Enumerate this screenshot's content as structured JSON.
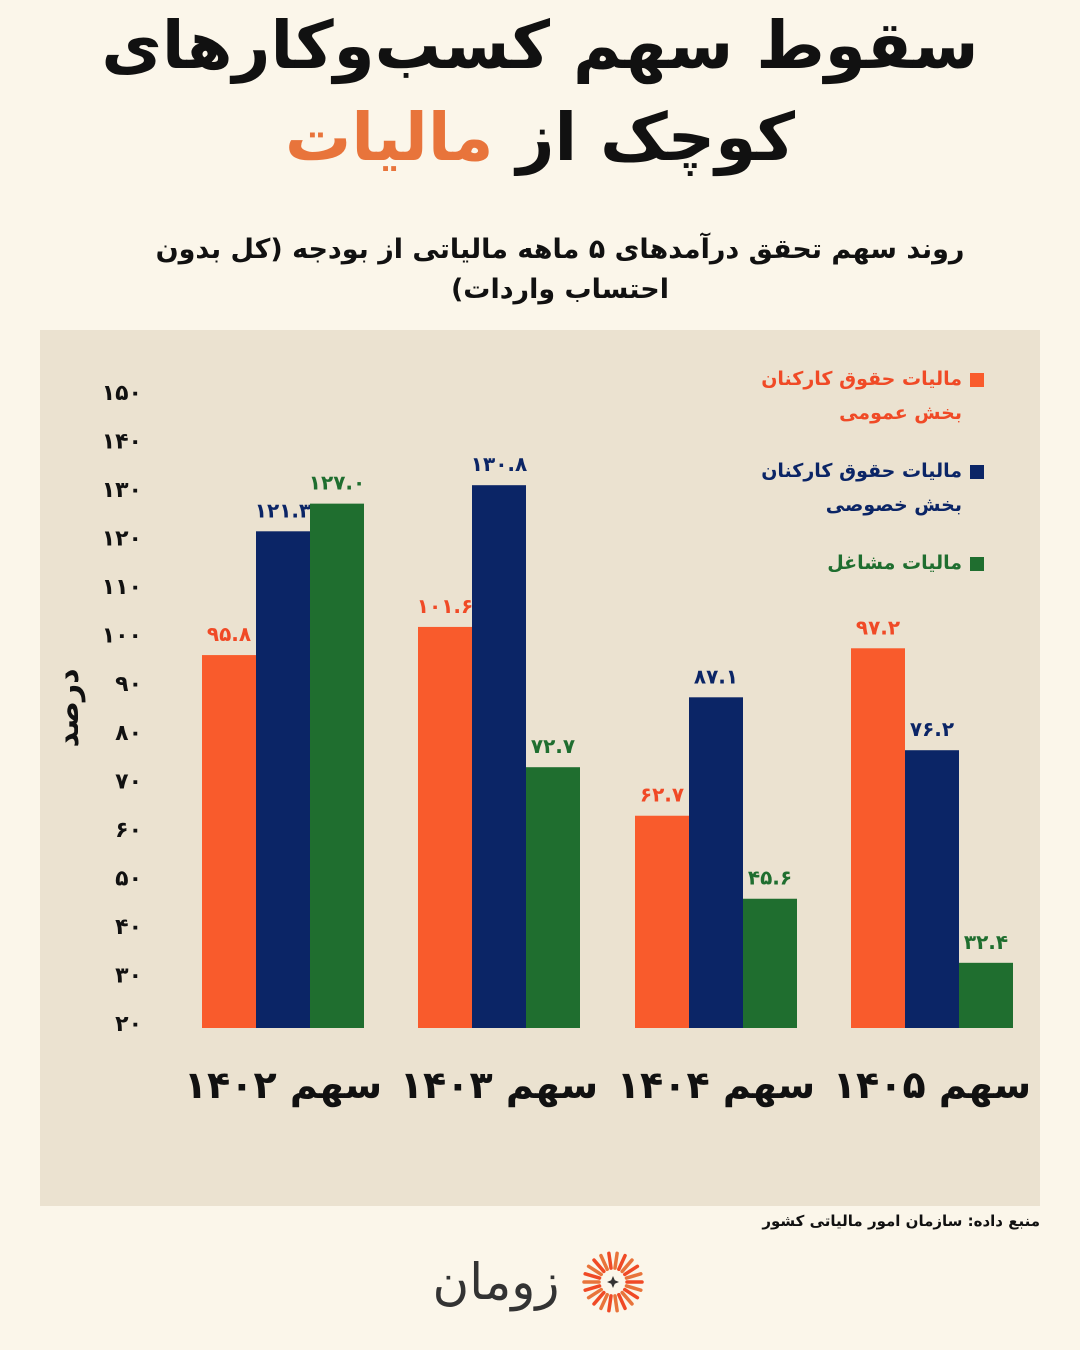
{
  "header": {
    "title_line1": "سقوط سهم کسب‌وکارهای",
    "title_line2_prefix": "کوچک از",
    "title_line2_accent": "مالیات",
    "subtitle": "روند سهم تحقق درآمدهای ۵ ماهه مالیاتی از بودجه (کل بدون احتساب واردات)"
  },
  "chart_data": {
    "type": "bar",
    "ylabel": "درصد",
    "ylim": [
      20,
      150
    ],
    "yticks": [
      20,
      30,
      40,
      50,
      60,
      70,
      80,
      90,
      100,
      110,
      120,
      130,
      140,
      150
    ],
    "ytick_labels": [
      "۲۰",
      "۳۰",
      "۴۰",
      "۵۰",
      "۶۰",
      "۷۰",
      "۸۰",
      "۹۰",
      "۱۰۰",
      "۱۱۰",
      "۱۲۰",
      "۱۳۰",
      "۱۴۰",
      "۱۵۰"
    ],
    "categories": [
      "سهم ۱۴۰۲",
      "سهم ۱۴۰۳",
      "سهم ۱۴۰۴",
      "سهم ۱۴۰۵"
    ],
    "series": [
      {
        "name": "مالیات حقوق کارکنان بخش عمومی",
        "color": "#f95b2c",
        "label_color": "#f04a26",
        "values": [
          95.8,
          101.6,
          62.7,
          97.2
        ],
        "labels": [
          "۹۵.۸",
          "۱۰۱.۶",
          "۶۲.۷",
          "۹۷.۲"
        ]
      },
      {
        "name": "مالیات حقوق کارکنان بخش خصوصی",
        "color": "#0b2566",
        "label_color": "#0b2566",
        "values": [
          121.3,
          130.8,
          87.1,
          76.2
        ],
        "labels": [
          "۱۲۱.۳",
          "۱۳۰.۸",
          "۸۷.۱",
          "۷۶.۲"
        ]
      },
      {
        "name": "مالیات مشاغل",
        "color": "#1f6e2f",
        "label_color": "#1f6e2f",
        "values": [
          127.0,
          72.7,
          45.6,
          32.4
        ],
        "labels": [
          "۱۲۷.۰",
          "۷۲.۷",
          "۴۵.۶",
          "۳۲.۴"
        ]
      }
    ],
    "legend_position": "top-right",
    "grid": false
  },
  "legend": {
    "items": [
      {
        "label": "مالیات حقوق کارکنان بخش عمومی",
        "color": "#f95b2c",
        "text_color": "#f04a26"
      },
      {
        "label": "مالیات حقوق کارکنان بخش خصوصی",
        "color": "#0b2566",
        "text_color": "#0b2566"
      },
      {
        "label": "مالیات مشاغل",
        "color": "#1f6e2f",
        "text_color": "#1f6e2f"
      }
    ]
  },
  "footer": {
    "source": "منبع داده: سازمان امور مالیاتی کشور",
    "brand": "زومان",
    "brand_icon": "sunburst-logo-icon"
  }
}
